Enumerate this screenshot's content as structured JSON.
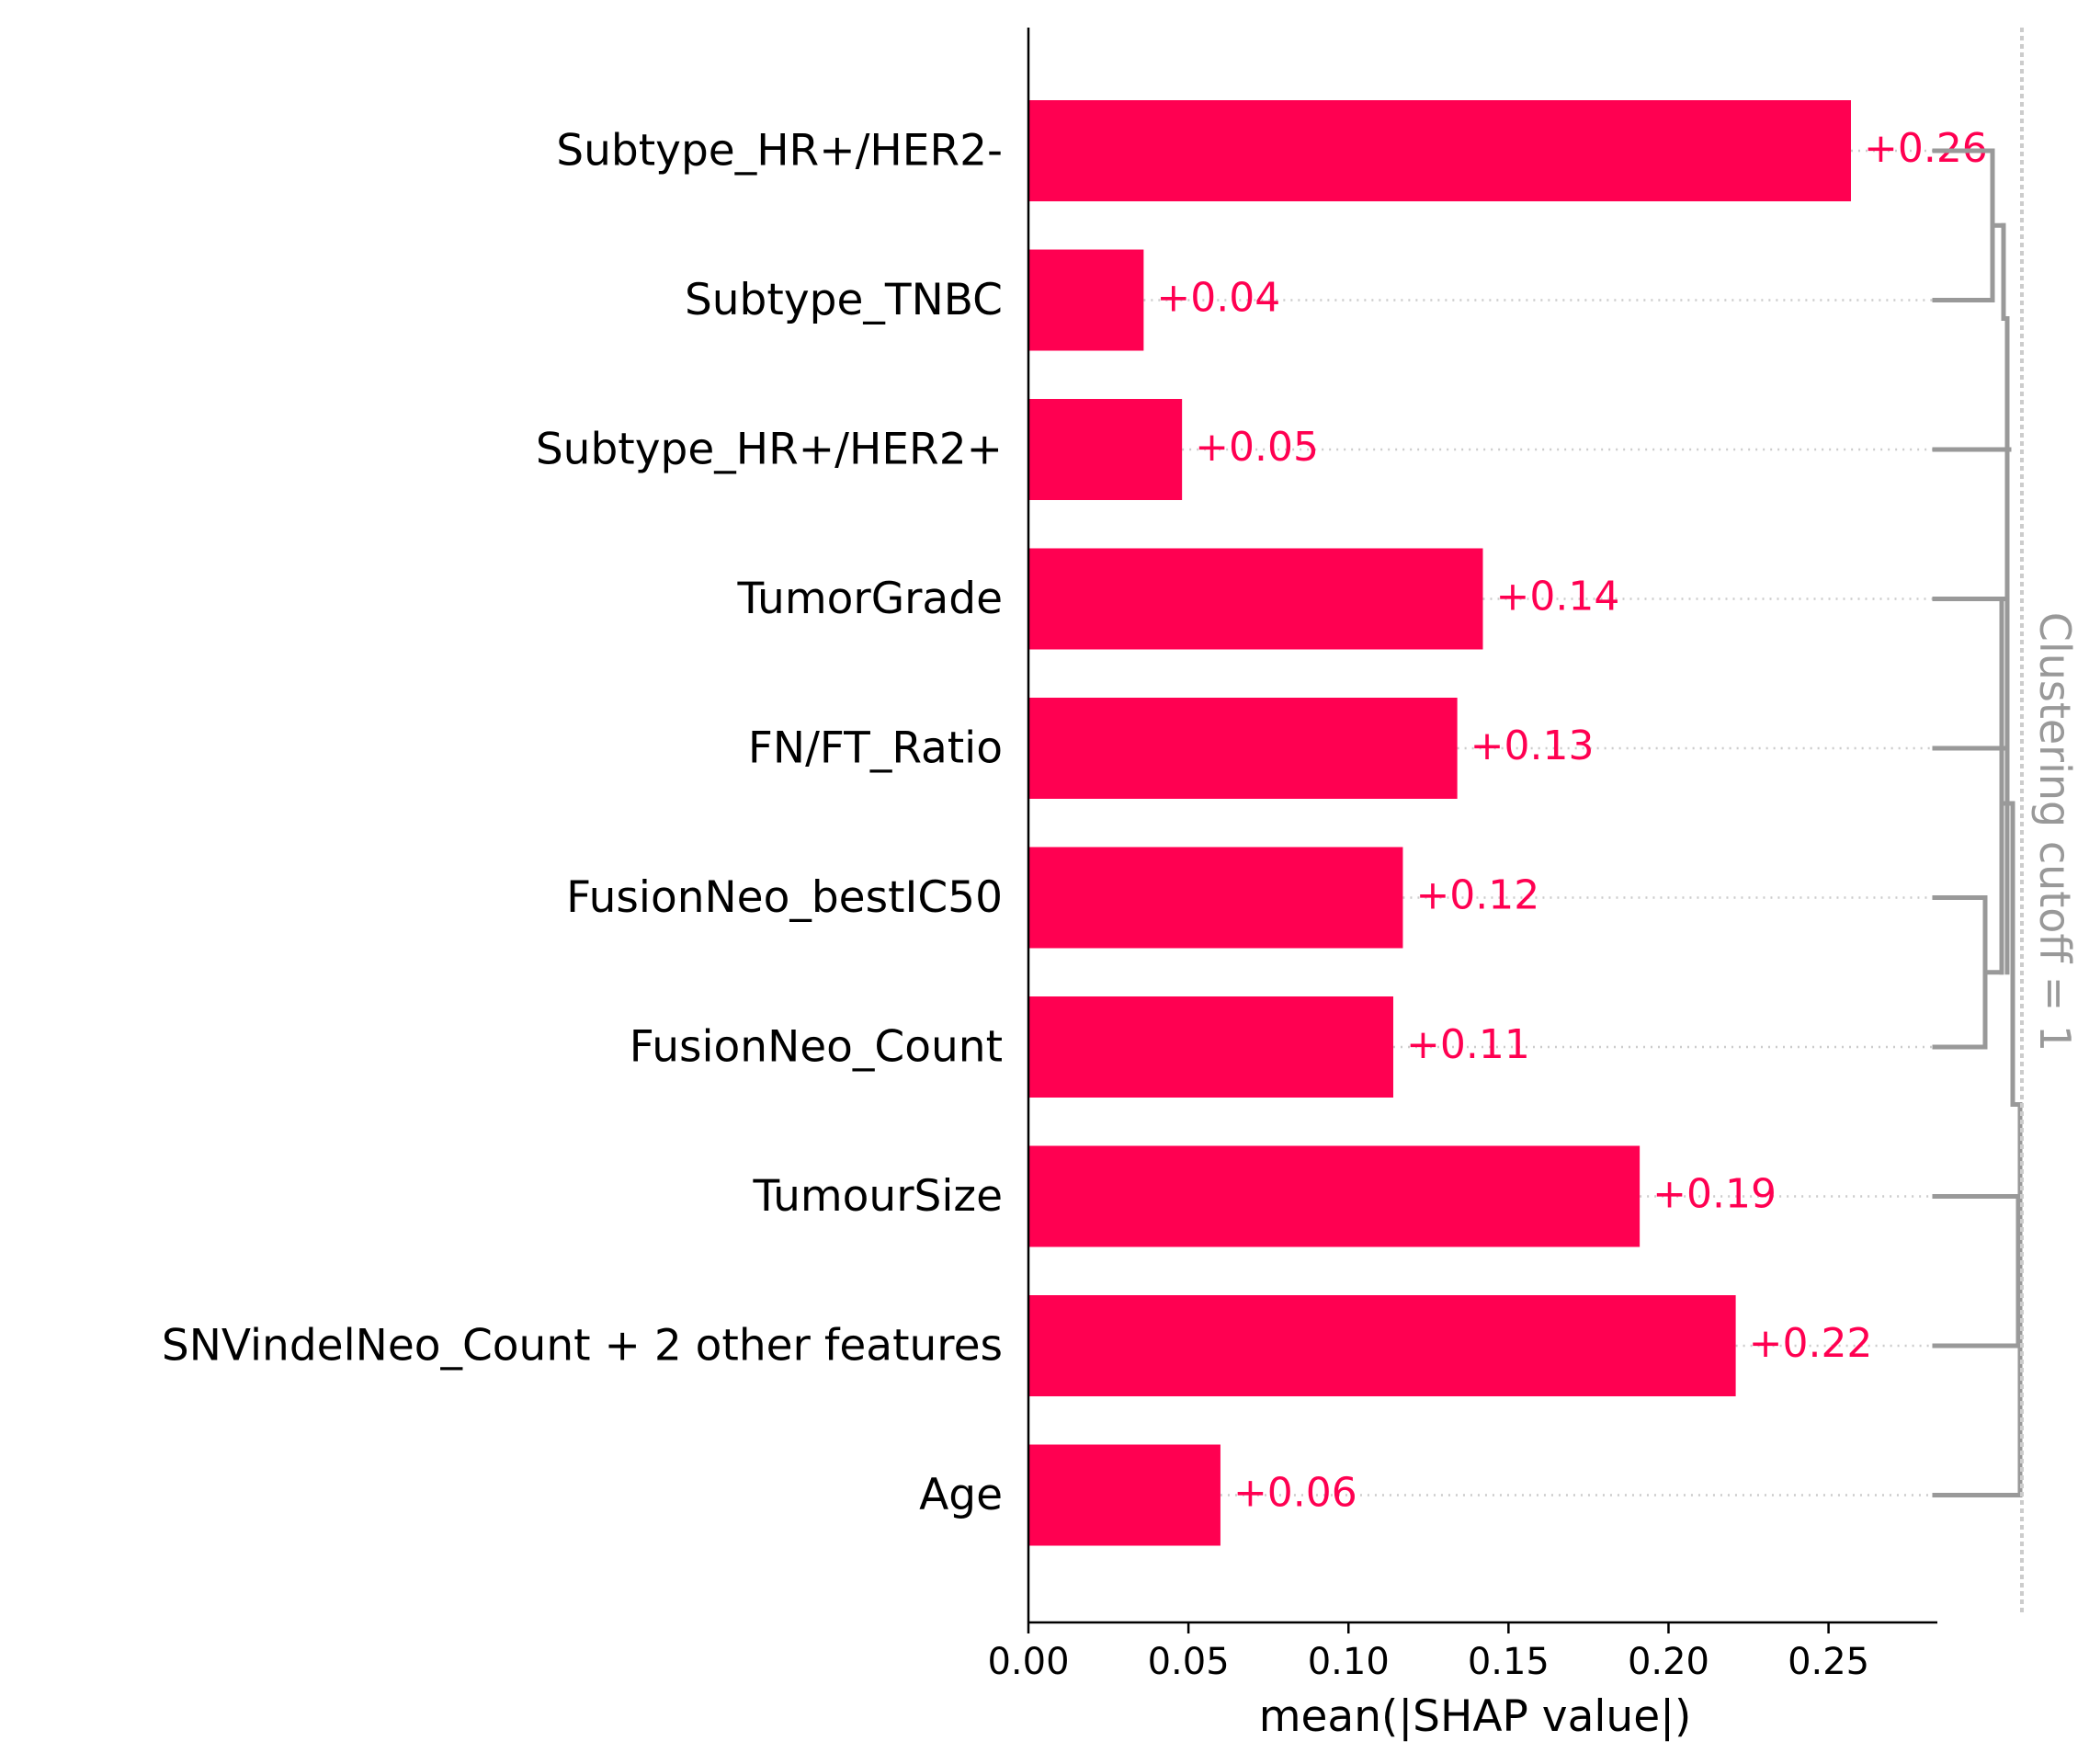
{
  "chart_data": {
    "type": "bar",
    "orientation": "horizontal",
    "categories": [
      "Subtype_HR+/HER2-",
      "Subtype_TNBC",
      "Subtype_HR+/HER2+",
      "TumorGrade",
      "FN/FT_Ratio",
      "FusionNeo_bestIC50",
      "FusionNeo_Count",
      "TumourSize",
      "SNVindelNeo_Count + 2 other features",
      "Age"
    ],
    "values": [
      0.257,
      0.036,
      0.048,
      0.142,
      0.134,
      0.117,
      0.114,
      0.191,
      0.221,
      0.06
    ],
    "value_labels": [
      "+0.26",
      "+0.04",
      "+0.05",
      "+0.14",
      "+0.13",
      "+0.12",
      "+0.11",
      "+0.19",
      "+0.22",
      "+0.06"
    ],
    "xlabel": "mean(|SHAP value|)",
    "xlim": [
      0,
      0.284
    ],
    "xticks": [
      0.0,
      0.05,
      0.1,
      0.15,
      0.2,
      0.25
    ],
    "xtick_labels": [
      "0.00",
      "0.05",
      "0.10",
      "0.15",
      "0.20",
      "0.25"
    ],
    "bar_color": "#ff0051",
    "cutoff_label": "Clustering cutoff = 1",
    "dendrogram_color": "#999999",
    "grid": false
  }
}
